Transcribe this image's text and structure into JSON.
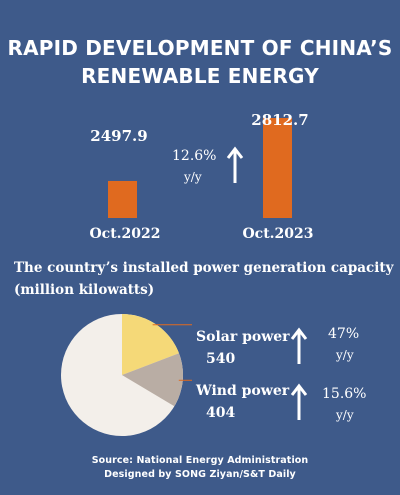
{
  "title_line1": "RAPID DEVELOPMENT OF CHINA’S",
  "title_line2": "RENEWABLE ENERGY",
  "colors": {
    "background": "#3e5a8a",
    "bar": "#e06a1f",
    "pie_other": "#f3efea",
    "pie_solar": "#f5d978",
    "pie_wind": "#b9ada4",
    "leader": "#e06a1f"
  },
  "chart_data": [
    {
      "type": "bar",
      "categories": [
        "Oct.2022",
        "Oct.2023"
      ],
      "values": [
        2497.9,
        2812.7
      ],
      "value_labels": [
        "2497.9",
        "2812.7"
      ],
      "growth": "12.6%",
      "growth_unit": "y/y",
      "growth_icon": "up-arrow-icon"
    },
    {
      "type": "pie",
      "caption_line1": "The country’s installed power generation capacity",
      "caption_line2": "(million kilowatts)",
      "total": 2812.7,
      "slices": [
        {
          "label": "Solar power",
          "value": 540,
          "value_label": "540",
          "growth": "47%",
          "growth_unit": "y/y"
        },
        {
          "label": "Wind power",
          "value": 404,
          "value_label": "404",
          "growth": "15.6%",
          "growth_unit": "y/y"
        }
      ]
    }
  ],
  "source_line1": "Source: National Energy Administration",
  "source_line2": "Designed by SONG Ziyan/S&T Daily"
}
